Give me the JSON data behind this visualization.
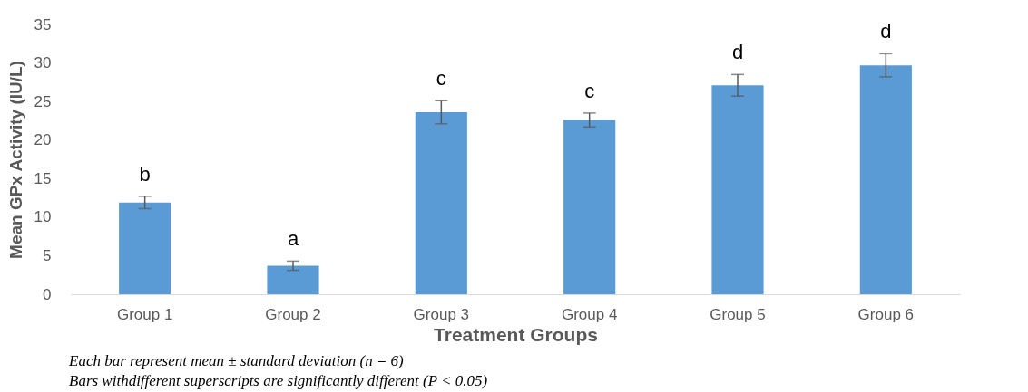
{
  "chart_data": {
    "type": "bar",
    "xlabel": "Treatment Groups",
    "ylabel": "Mean GPx Activity (IU/L)",
    "categories": [
      "Group 1",
      "Group 2",
      "Group 3",
      "Group 4",
      "Group 5",
      "Group 6"
    ],
    "values": [
      11.9,
      3.7,
      23.6,
      22.6,
      27.1,
      29.7
    ],
    "errors": [
      0.8,
      0.6,
      1.5,
      0.9,
      1.4,
      1.5
    ],
    "color": "#5b9bd5",
    "ylim": [
      0,
      35
    ],
    "yticks": [
      0,
      5,
      10,
      15,
      20,
      25,
      30,
      35
    ],
    "grid": false,
    "annotations": [
      {
        "text": "b",
        "x": "Group 1",
        "y": 12.7
      },
      {
        "text": "a",
        "x": "Group 2",
        "y": 4.3
      },
      {
        "text": "c",
        "x": "Group 3",
        "y": 25.1
      },
      {
        "text": "c",
        "x": "Group 4",
        "y": 23.5
      },
      {
        "text": "d",
        "x": "Group 5",
        "y": 28.5
      },
      {
        "text": "d",
        "x": "Group 6",
        "y": 31.2
      },
      "Each bar represent mean ± standard deviation (n = 6)",
      "Bars withdifferent superscripts are significantly different (P < 0.05)"
    ]
  }
}
